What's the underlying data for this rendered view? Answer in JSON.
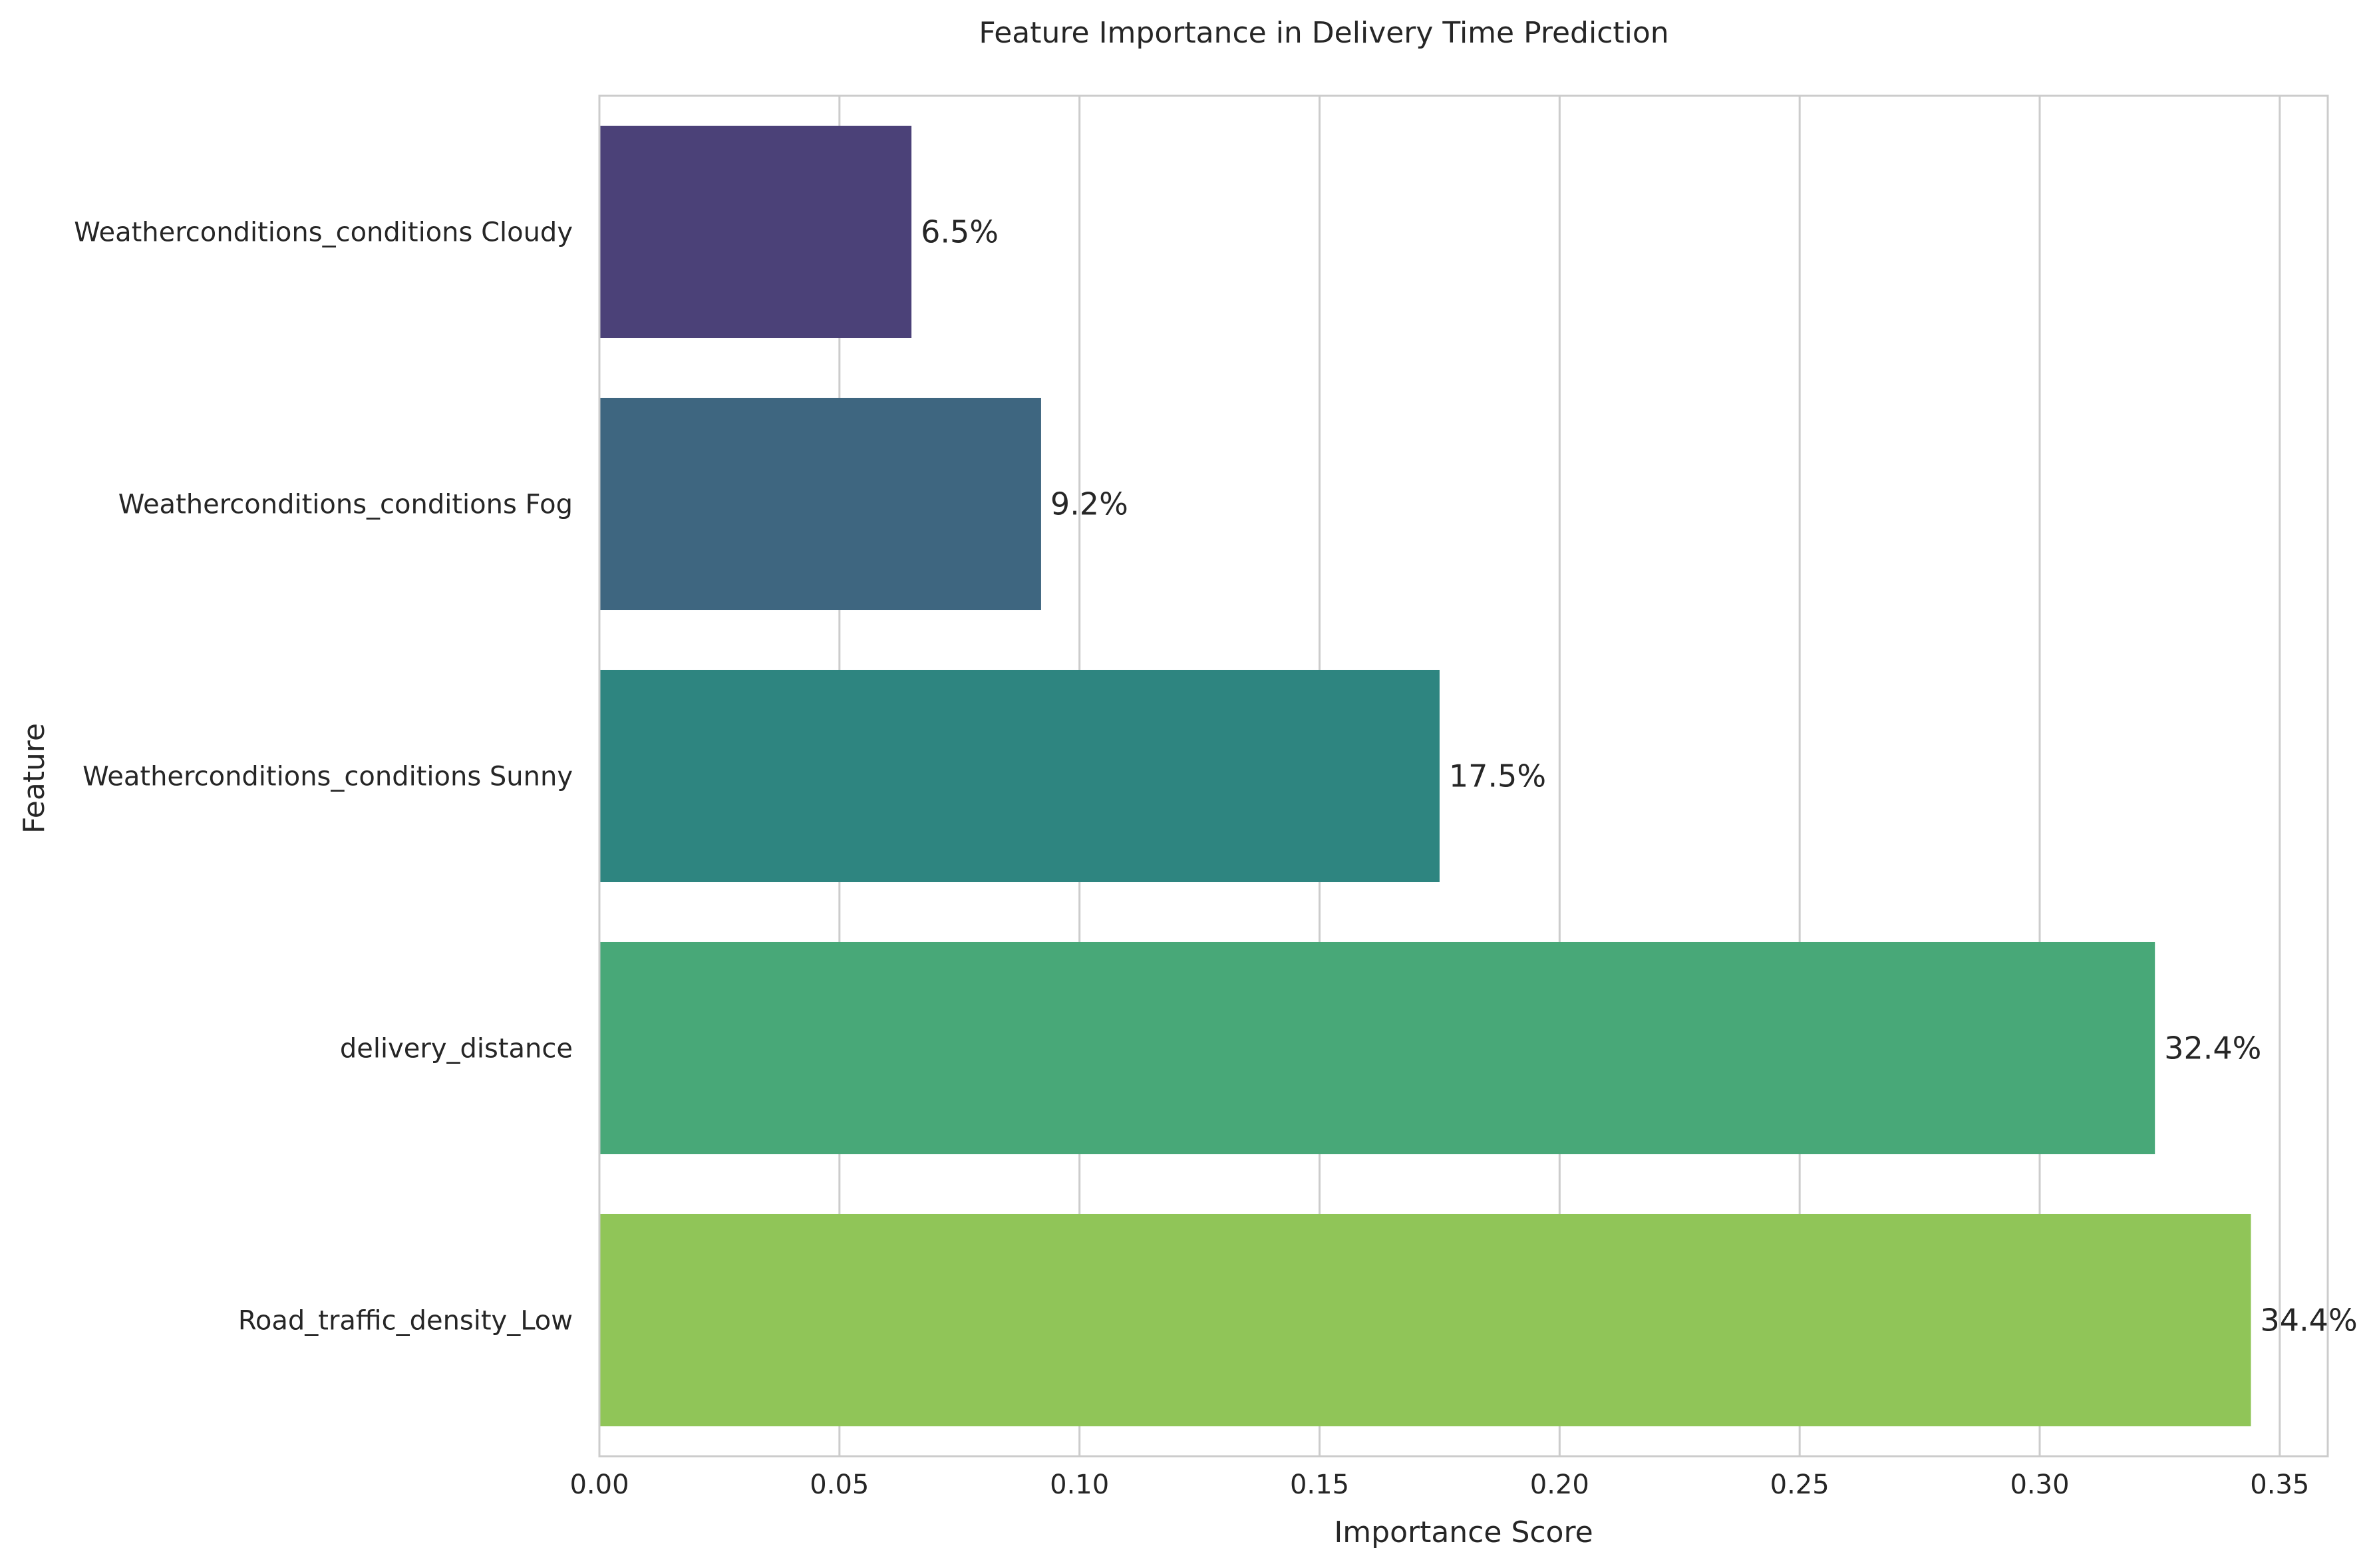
{
  "chart_data": {
    "type": "bar",
    "orientation": "horizontal",
    "title": "Feature Importance in Delivery Time Prediction",
    "xlabel": "Importance Score",
    "ylabel": "Feature",
    "xlim": [
      0,
      0.36
    ],
    "x_ticks": [
      0.0,
      0.05,
      0.1,
      0.15,
      0.2,
      0.25,
      0.3,
      0.35
    ],
    "x_tick_labels": [
      "0.00",
      "0.05",
      "0.10",
      "0.15",
      "0.20",
      "0.25",
      "0.30",
      "0.35"
    ],
    "grid": "vertical",
    "categories": [
      "Weatherconditions_conditions Cloudy",
      "Weatherconditions_conditions Fog",
      "Weatherconditions_conditions Sunny",
      "delivery_distance",
      "Road_traffic_density_Low"
    ],
    "values": [
      0.065,
      0.092,
      0.175,
      0.324,
      0.344
    ],
    "data_labels": [
      "6.5%",
      "9.2%",
      "17.5%",
      "32.4%",
      "34.4%"
    ],
    "colors": [
      "#4b4178",
      "#3e6680",
      "#2e8580",
      "#48a878",
      "#90c558"
    ]
  }
}
